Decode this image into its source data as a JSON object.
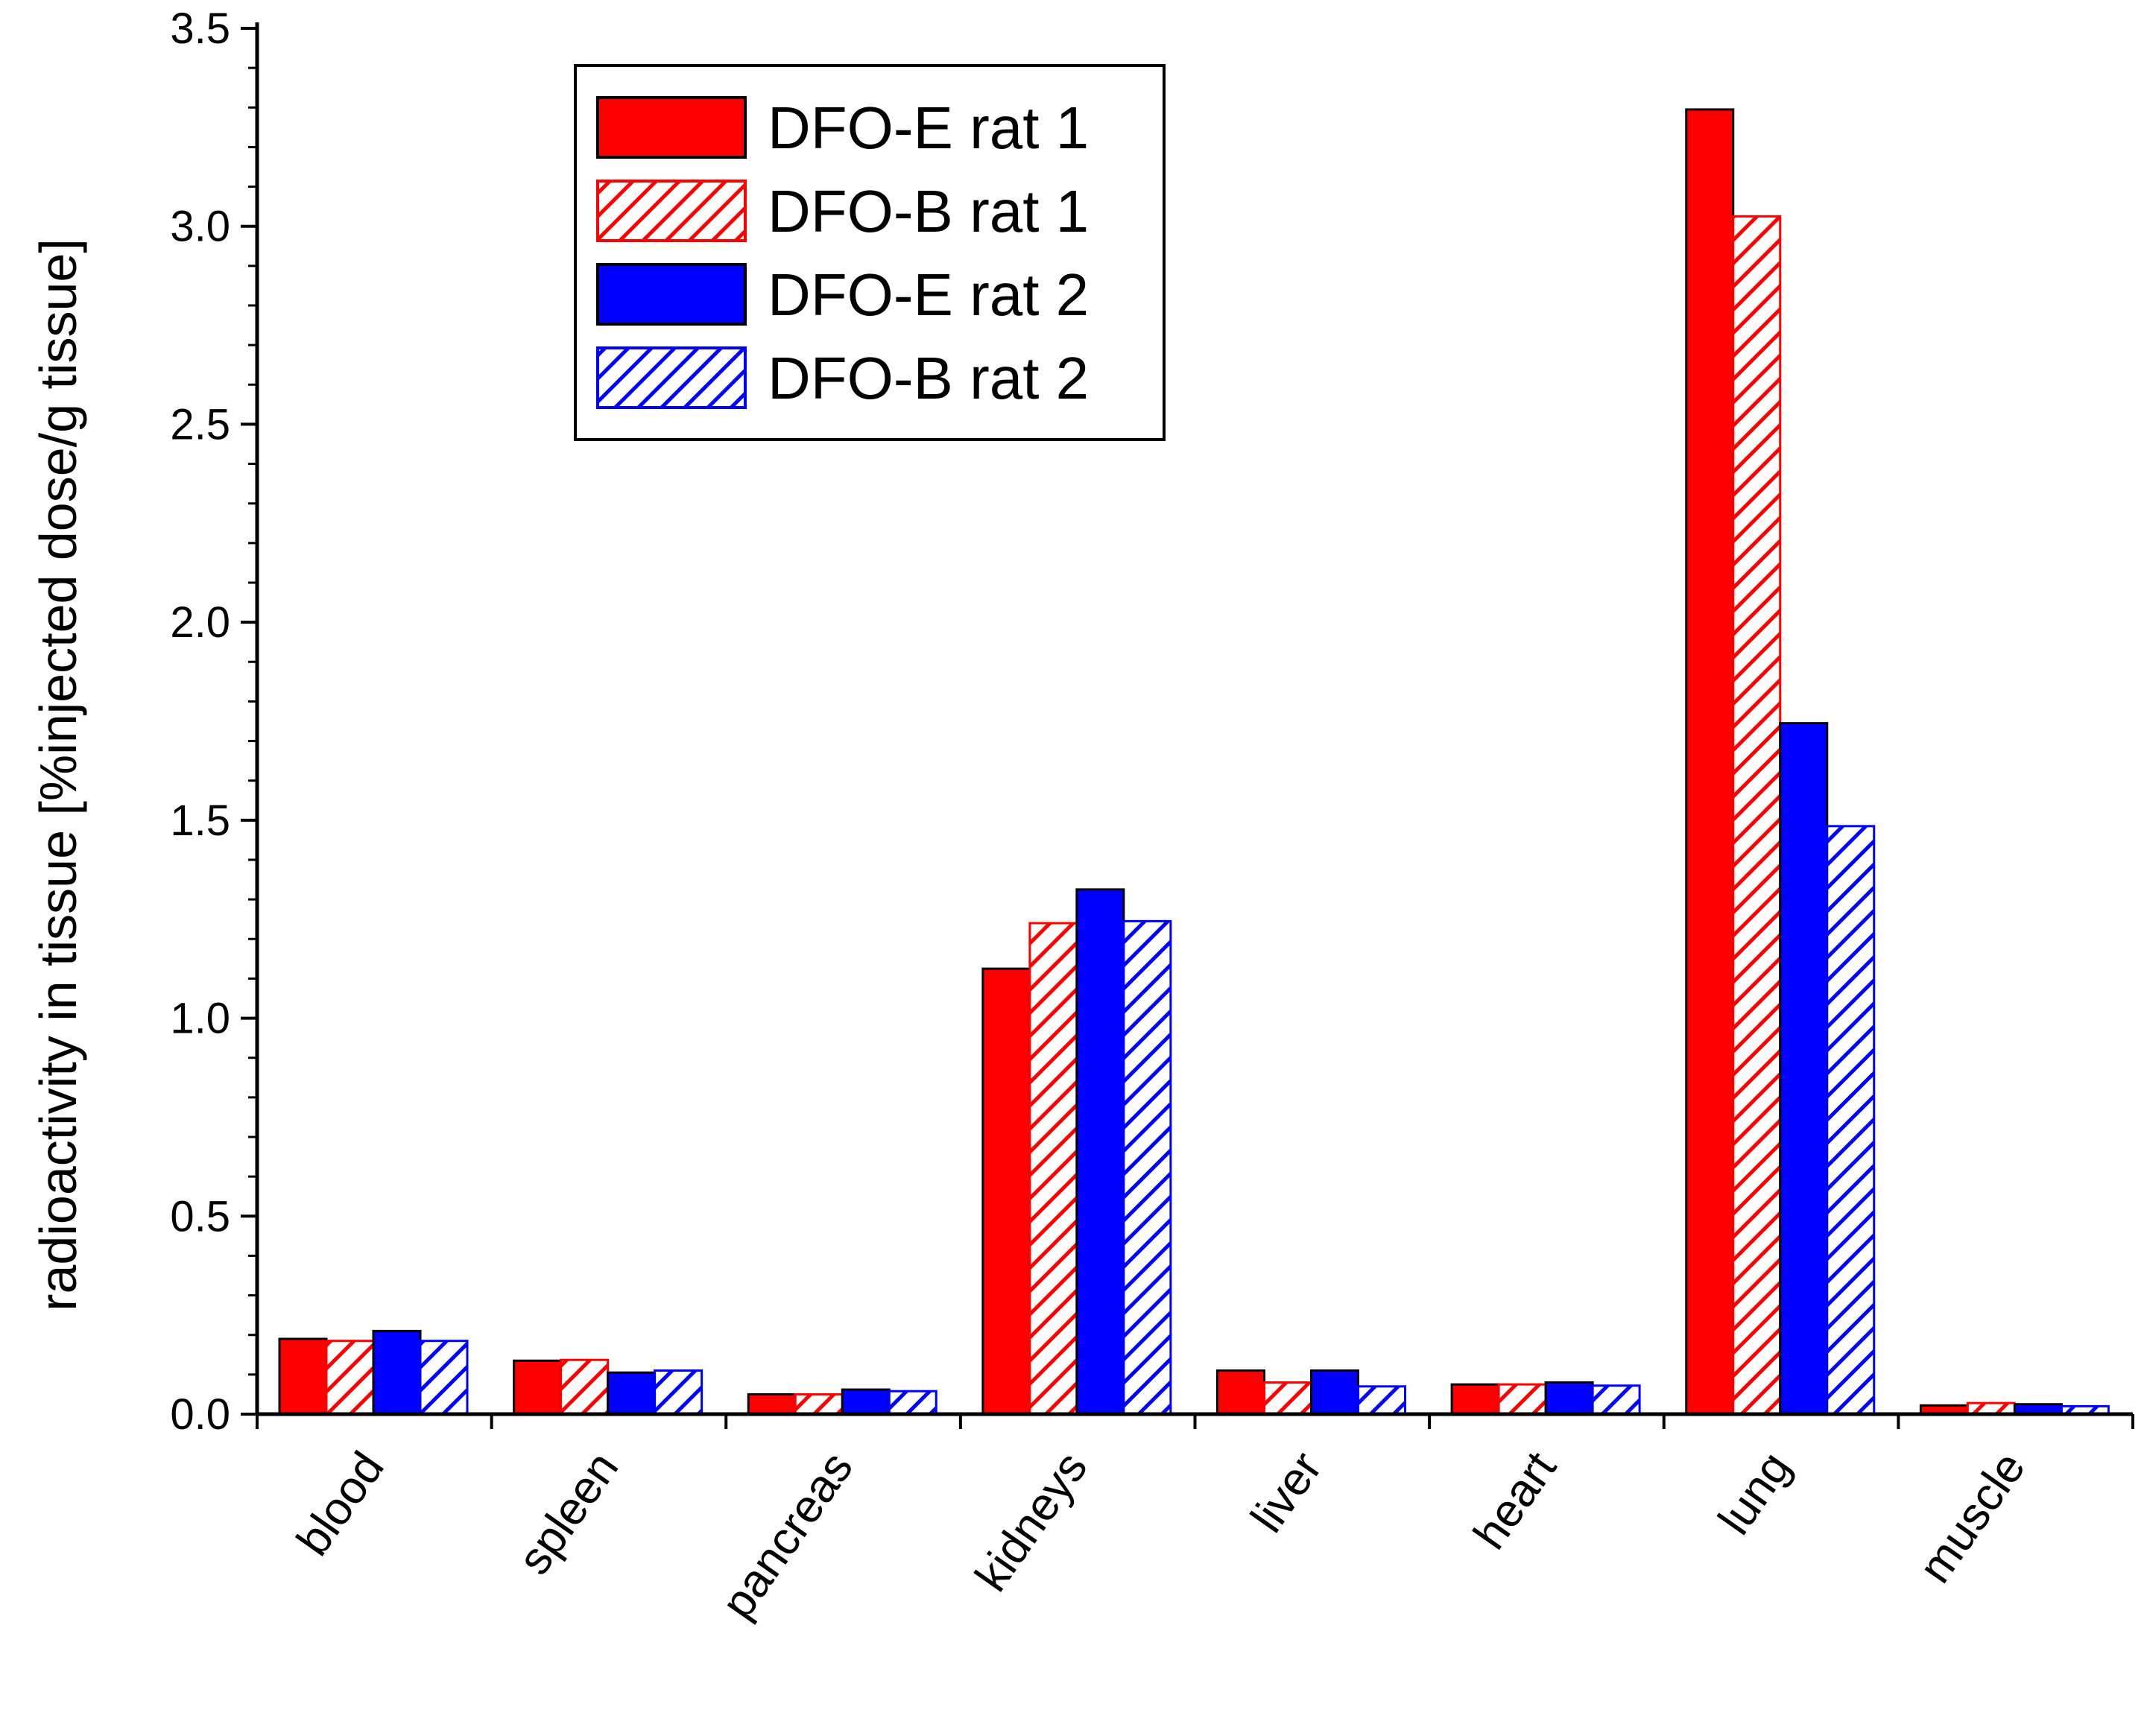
{
  "chart_data": {
    "type": "bar",
    "title": "",
    "xlabel": "",
    "ylabel": "radioactivity in tissue [%injected dose/g tissue]",
    "ylim": [
      0,
      3.5
    ],
    "y_ticks": [
      "0.0",
      "0.5",
      "1.0",
      "1.5",
      "2.0",
      "2.5",
      "3.0",
      "3.5"
    ],
    "y_tick_values": [
      0,
      0.5,
      1.0,
      1.5,
      2.0,
      2.5,
      3.0,
      3.5
    ],
    "grid": false,
    "legend_position": "top-left",
    "categories": [
      "blood",
      "spleen",
      "pancreas",
      "kidneys",
      "liver",
      "heart",
      "lung",
      "muscle"
    ],
    "series": [
      {
        "name": "DFO-E rat 1",
        "color": "#ff0000",
        "pattern": "solid",
        "values": [
          0.19,
          0.135,
          0.05,
          1.125,
          0.11,
          0.075,
          3.295,
          0.022
        ]
      },
      {
        "name": "DFO-B rat 1",
        "color": "#ff0000",
        "pattern": "hatched",
        "values": [
          0.185,
          0.137,
          0.05,
          1.24,
          0.08,
          0.075,
          3.025,
          0.028
        ]
      },
      {
        "name": "DFO-E rat 2",
        "color": "#0000ff",
        "pattern": "solid",
        "values": [
          0.21,
          0.105,
          0.062,
          1.325,
          0.11,
          0.08,
          1.745,
          0.025
        ]
      },
      {
        "name": "DFO-B rat 2",
        "color": "#0000ff",
        "pattern": "hatched",
        "values": [
          0.185,
          0.11,
          0.058,
          1.245,
          0.07,
          0.072,
          1.485,
          0.02
        ]
      }
    ]
  }
}
